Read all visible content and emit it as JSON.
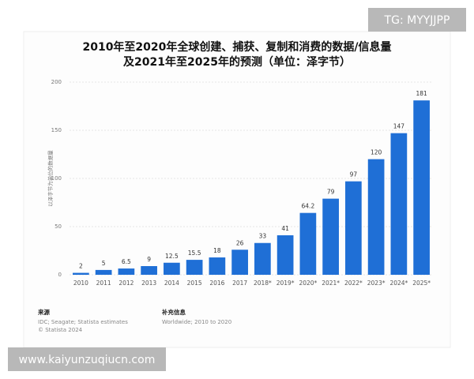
{
  "chart_data": {
    "type": "bar",
    "title": [
      "2010年至2020年全球创建、捕获、复制和消费的数据/信息量",
      "及2021年至2025年的预测（单位：泽字节）"
    ],
    "y_label": "以泽字节为单位的数据量",
    "categories": [
      "2010",
      "2011",
      "2012",
      "2013",
      "2014",
      "2015",
      "2016",
      "2017",
      "2018*",
      "2019*",
      "2020*",
      "2021*",
      "2022*",
      "2023*",
      "2024*",
      "2025*"
    ],
    "values": [
      2,
      5,
      6.5,
      9,
      12.5,
      15.5,
      18,
      26,
      33,
      41,
      64.2,
      79,
      97,
      120,
      147,
      181
    ],
    "color": "#1f6fd6",
    "ylim": [
      0,
      200
    ],
    "yticks": [
      0,
      50,
      100,
      150,
      200
    ],
    "grid": true
  },
  "footer": {
    "source_title": "来源",
    "source": [
      "IDC; Seagate; Statista estimates",
      "© Statista 2024"
    ],
    "info_title": "补充信息",
    "info": "Worldwide; 2010 to 2020"
  },
  "watermark": "TG: MYYJJPP",
  "website": "www.kaiyunzuqiucn.com"
}
